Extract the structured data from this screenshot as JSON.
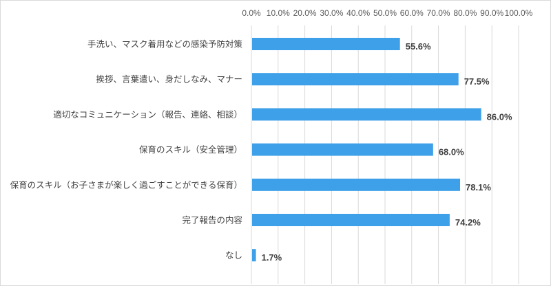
{
  "chart_data": {
    "type": "bar",
    "orientation": "horizontal",
    "categories": [
      "手洗い、マスク着用などの感染予防対策",
      "挨拶、言葉遣い、身だしなみ、マナー",
      "適切なコミュニケーション（報告、連絡、相談）",
      "保育のスキル（安全管理）",
      "保育のスキル（お子さまが楽しく過ごすことができる保育）",
      "完了報告の内容",
      "なし"
    ],
    "values": [
      55.6,
      77.5,
      86.0,
      68.0,
      78.1,
      74.2,
      1.7
    ],
    "data_labels": [
      "55.6%",
      "77.5%",
      "86.0%",
      "68.0%",
      "78.1%",
      "74.2%",
      "1.7%"
    ],
    "xlim": [
      0,
      100
    ],
    "x_ticks": [
      0,
      10,
      20,
      30,
      40,
      50,
      60,
      70,
      80,
      90,
      100
    ],
    "x_tick_labels": [
      "0.0%",
      "10.0%",
      "20.0%",
      "30.0%",
      "40.0%",
      "50.0%",
      "60.0%",
      "70.0%",
      "80.0%",
      "90.0%",
      "100.0%"
    ],
    "x_axis_position": "top",
    "grid": true,
    "legend": "none",
    "bar_color": "#3ea0e8",
    "grid_color": "#d9d9d9"
  }
}
